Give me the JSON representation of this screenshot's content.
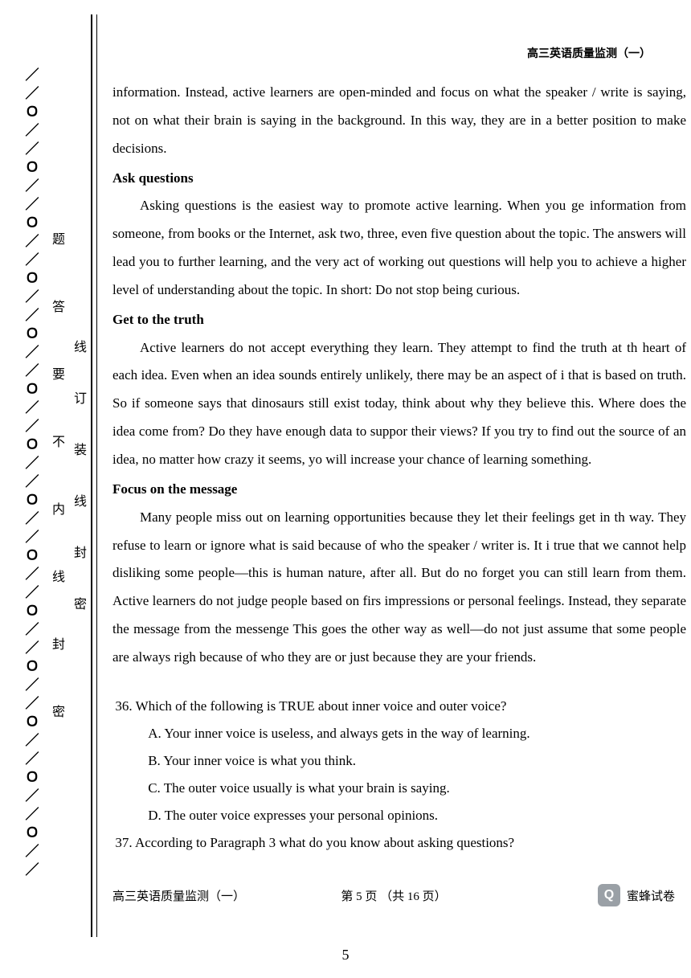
{
  "header": {
    "title": "高三英语质量监测（一）"
  },
  "binding": {
    "pattern": "／／Ｏ／／Ｏ／／Ｏ／／Ｏ／／Ｏ／／Ｏ／／Ｏ／／Ｏ／／Ｏ／／Ｏ／／Ｏ／／Ｏ／／Ｏ／／Ｏ／／",
    "outer_label_chars": [
      "密",
      "封",
      "线",
      "内",
      "不",
      "要",
      "答",
      "题"
    ],
    "inner_label_chars": [
      "密",
      "封",
      "线",
      "装",
      "订",
      "线"
    ]
  },
  "body": {
    "p1": "information. Instead, active learners are open-minded and focus on what the speaker / write is saying, not on what their brain is saying in the background. In this way, they are in a better position to make decisions.",
    "h1": "Ask questions",
    "p2": "Asking questions is the easiest way to promote active learning. When you ge information from someone, from books or the Internet, ask two, three, even five question about the topic. The answers will lead you to further learning, and the very act of working out questions will help you to achieve a higher level of understanding about the topic. In short: Do not stop being curious.",
    "h2": "Get to the truth",
    "p3": "Active learners do not accept everything they learn. They attempt to find the truth at th heart of each idea. Even when an idea sounds entirely unlikely, there may be an aspect of i that is based on truth. So if someone says that dinosaurs still exist today, think about why they believe this. Where does the idea come from? Do they have enough data to suppor their views? If you try to find out the source of an idea, no matter how crazy it seems, yo will increase your chance of learning something.",
    "h3": "Focus on the message",
    "p4": "Many people miss out on learning opportunities because they let their feelings get in th way. They refuse to learn or ignore what is said because of who the speaker / writer is. It i true that we cannot help disliking some people—this is human nature, after all. But do no forget you can still learn from them. Active learners do not judge people based on firs impressions or personal feelings. Instead, they separate the message from the messenge This goes the other way as well—do not just assume that some people are always righ because of who they are or just because they are your friends."
  },
  "questions": {
    "q36": "36. Which of the following is TRUE about inner voice and outer voice?",
    "q36a": "A. Your inner voice is useless, and always gets in the way of learning.",
    "q36b": "B. Your inner voice is what you think.",
    "q36c": "C. The outer voice usually is what your brain is saying.",
    "q36d": "D. The outer voice expresses your personal opinions.",
    "q37": "37. According to Paragraph 3  what do you know about asking questions?"
  },
  "footer": {
    "left": "高三英语质量监测（一）",
    "center": "第 5 页 （共 16 页）",
    "brand": "蜜蜂试卷",
    "icon_glyph": "Q"
  },
  "pagenum": "5"
}
